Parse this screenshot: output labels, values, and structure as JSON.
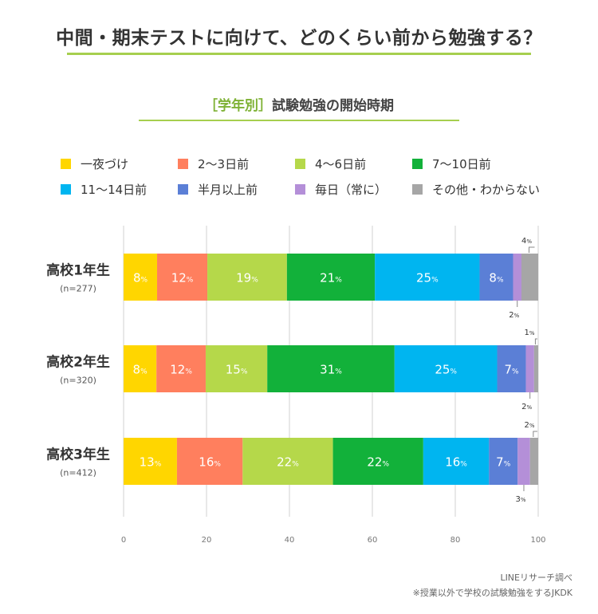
{
  "header": {
    "title": "中間・期末テストに向けて、どのくらい前から勉強する？",
    "subtitle_tag": "［学年別］",
    "subtitle_text": "試験勉強の開始時期"
  },
  "footer": {
    "source": "LINEリサーチ調べ",
    "note": "※授業以外で学校の試験勉強をするJKDK"
  },
  "chart_data": {
    "type": "bar",
    "orientation": "horizontal",
    "stacked": true,
    "percent_symbol": "%",
    "xlim": [
      0,
      100
    ],
    "xticks": [
      "0",
      "20",
      "40",
      "60",
      "80",
      "100"
    ],
    "grid": true,
    "legend_position": "top",
    "categories": [
      {
        "name": "高校1年生",
        "n": "(n=277)"
      },
      {
        "name": "高校2年生",
        "n": "(n=320)"
      },
      {
        "name": "高校3年生",
        "n": "(n=412)"
      }
    ],
    "series": [
      {
        "name": "一夜づけ",
        "color": "#ffd600",
        "values": [
          8,
          8,
          13
        ]
      },
      {
        "name": "2〜3日前",
        "color": "#ff7f5e",
        "values": [
          12,
          12,
          16
        ]
      },
      {
        "name": "4〜6日前",
        "color": "#b5d84a",
        "values": [
          19,
          15,
          22
        ]
      },
      {
        "name": "7〜10日前",
        "color": "#12b13a",
        "values": [
          21,
          31,
          22
        ]
      },
      {
        "name": "11〜14日前",
        "color": "#00b5f0",
        "values": [
          25,
          25,
          16
        ]
      },
      {
        "name": "半月以上前",
        "color": "#5b7fd6",
        "values": [
          8,
          7,
          7
        ]
      },
      {
        "name": "毎日（常に）",
        "color": "#b48fd8",
        "values": [
          2,
          2,
          3
        ]
      },
      {
        "name": "その他・わからない",
        "color": "#a6a6a6",
        "values": [
          4,
          1,
          2
        ]
      }
    ]
  }
}
